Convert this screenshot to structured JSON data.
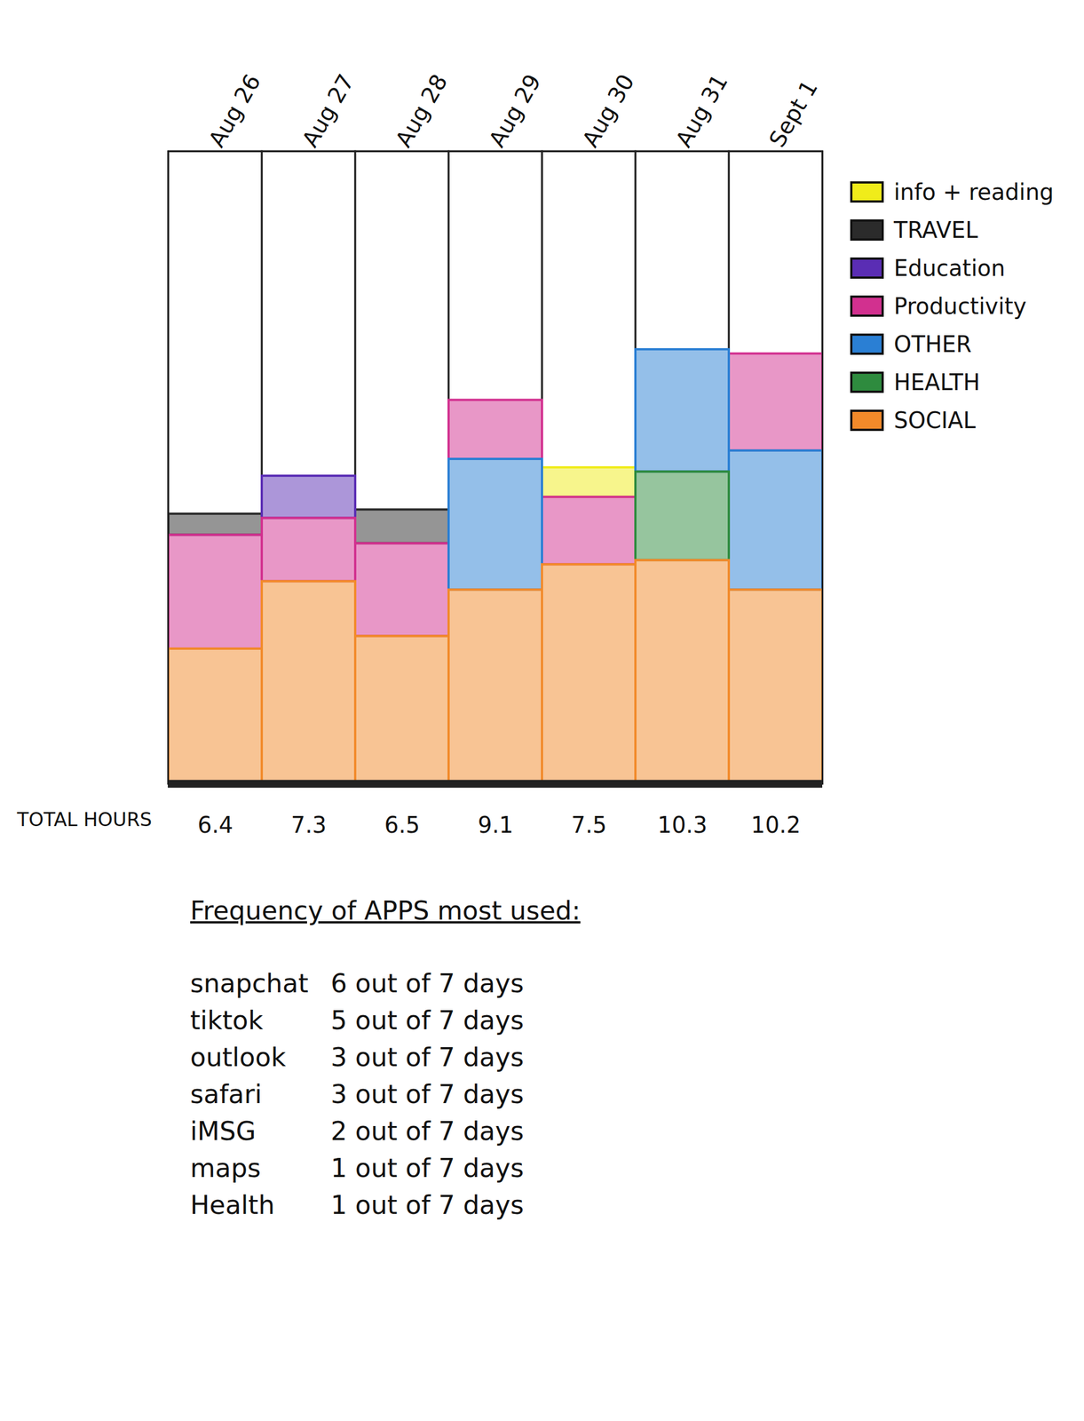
{
  "chart_data": {
    "type": "bar",
    "stacked": true,
    "tick_labels": "x",
    "legend": "right",
    "categories": [
      "Aug 26",
      "Aug 27",
      "Aug 28",
      "Aug 29",
      "Aug 30",
      "Aug 31",
      "Sept 1"
    ],
    "ylim": [
      0,
      15
    ],
    "series": [
      {
        "name": "info + reading",
        "color": "#f0ec1a",
        "values": [
          null,
          null,
          null,
          null,
          0.7,
          null,
          null
        ]
      },
      {
        "name": "TRAVEL",
        "color": "#2b2b2b",
        "values": [
          0.5,
          null,
          0.8,
          null,
          null,
          null,
          null
        ]
      },
      {
        "name": "Education",
        "color": "#5a2db4",
        "values": [
          null,
          1.0,
          null,
          null,
          null,
          null,
          null
        ]
      },
      {
        "name": "Productivity",
        "color": "#d2308f",
        "values": [
          2.7,
          1.5,
          2.2,
          1.4,
          1.6,
          null,
          2.3
        ]
      },
      {
        "name": "OTHER",
        "color": "#2a7fd4",
        "values": [
          null,
          null,
          null,
          3.1,
          null,
          2.9,
          3.3
        ]
      },
      {
        "name": "HEALTH",
        "color": "#2e8b3e",
        "values": [
          null,
          null,
          null,
          null,
          null,
          2.1,
          null
        ]
      },
      {
        "name": "SOCIAL",
        "color": "#f28a2a",
        "values": [
          3.2,
          4.8,
          3.5,
          4.6,
          5.2,
          5.3,
          4.6
        ]
      }
    ],
    "totals_label": "TOTAL HOURS",
    "totals": [
      6.4,
      7.3,
      6.5,
      9.1,
      7.5,
      10.3,
      10.2
    ],
    "app_frequency": {
      "title": "Frequency of APPS most used:",
      "rows": [
        {
          "app": "snapchat",
          "frequency": "6 out of 7 days"
        },
        {
          "app": "tiktok",
          "frequency": "5 out of 7 days"
        },
        {
          "app": "outlook",
          "frequency": "3 out of 7 days"
        },
        {
          "app": "safari",
          "frequency": "3 out of 7 days"
        },
        {
          "app": "iMSG",
          "frequency": "2 out of 7 days"
        },
        {
          "app": "maps",
          "frequency": "1 out of 7 days"
        },
        {
          "app": "Health",
          "frequency": "1 out of 7 days"
        }
      ]
    }
  }
}
